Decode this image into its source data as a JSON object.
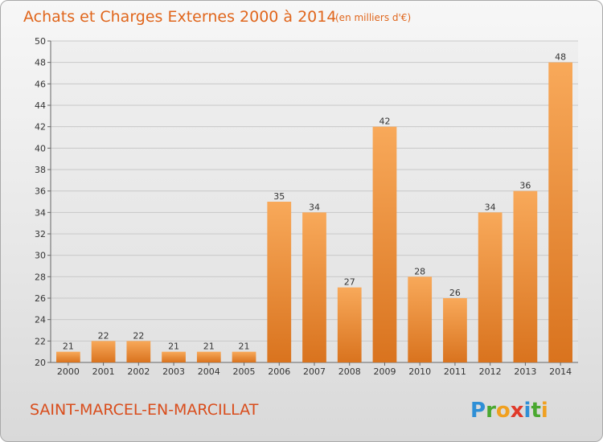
{
  "title": "Achats et Charges Externes 2000 à 2014",
  "unit": "(en milliers d'€)",
  "commune": "SAINT-MARCEL-EN-MARCILLAT",
  "logo": {
    "letters": [
      "P",
      "r",
      "o",
      "x",
      "i",
      "t",
      "i"
    ],
    "colors": [
      "#2e8fd6",
      "#4aa830",
      "#f0a020",
      "#e03a2a",
      "#2e8fd6",
      "#4aa830",
      "#f0a020"
    ]
  },
  "colors": {
    "bar_light": "#f8a95a",
    "bar_dark": "#d9731e",
    "title": "#e0661c"
  },
  "chart_data": {
    "type": "bar",
    "categories": [
      "2000",
      "2001",
      "2002",
      "2003",
      "2004",
      "2005",
      "2006",
      "2007",
      "2008",
      "2009",
      "2010",
      "2011",
      "2012",
      "2013",
      "2014"
    ],
    "values": [
      21,
      22,
      22,
      21,
      21,
      21,
      35,
      34,
      27,
      42,
      28,
      26,
      34,
      36,
      48
    ],
    "title": "Achats et Charges Externes 2000 à 2014",
    "subtitle": "(en milliers d'€)",
    "xlabel": "",
    "ylabel": "",
    "ylim": [
      20,
      50
    ],
    "yticks": [
      20,
      22,
      24,
      26,
      28,
      30,
      32,
      34,
      36,
      38,
      40,
      42,
      44,
      46,
      48,
      50
    ],
    "grid": true,
    "legend": "none"
  }
}
